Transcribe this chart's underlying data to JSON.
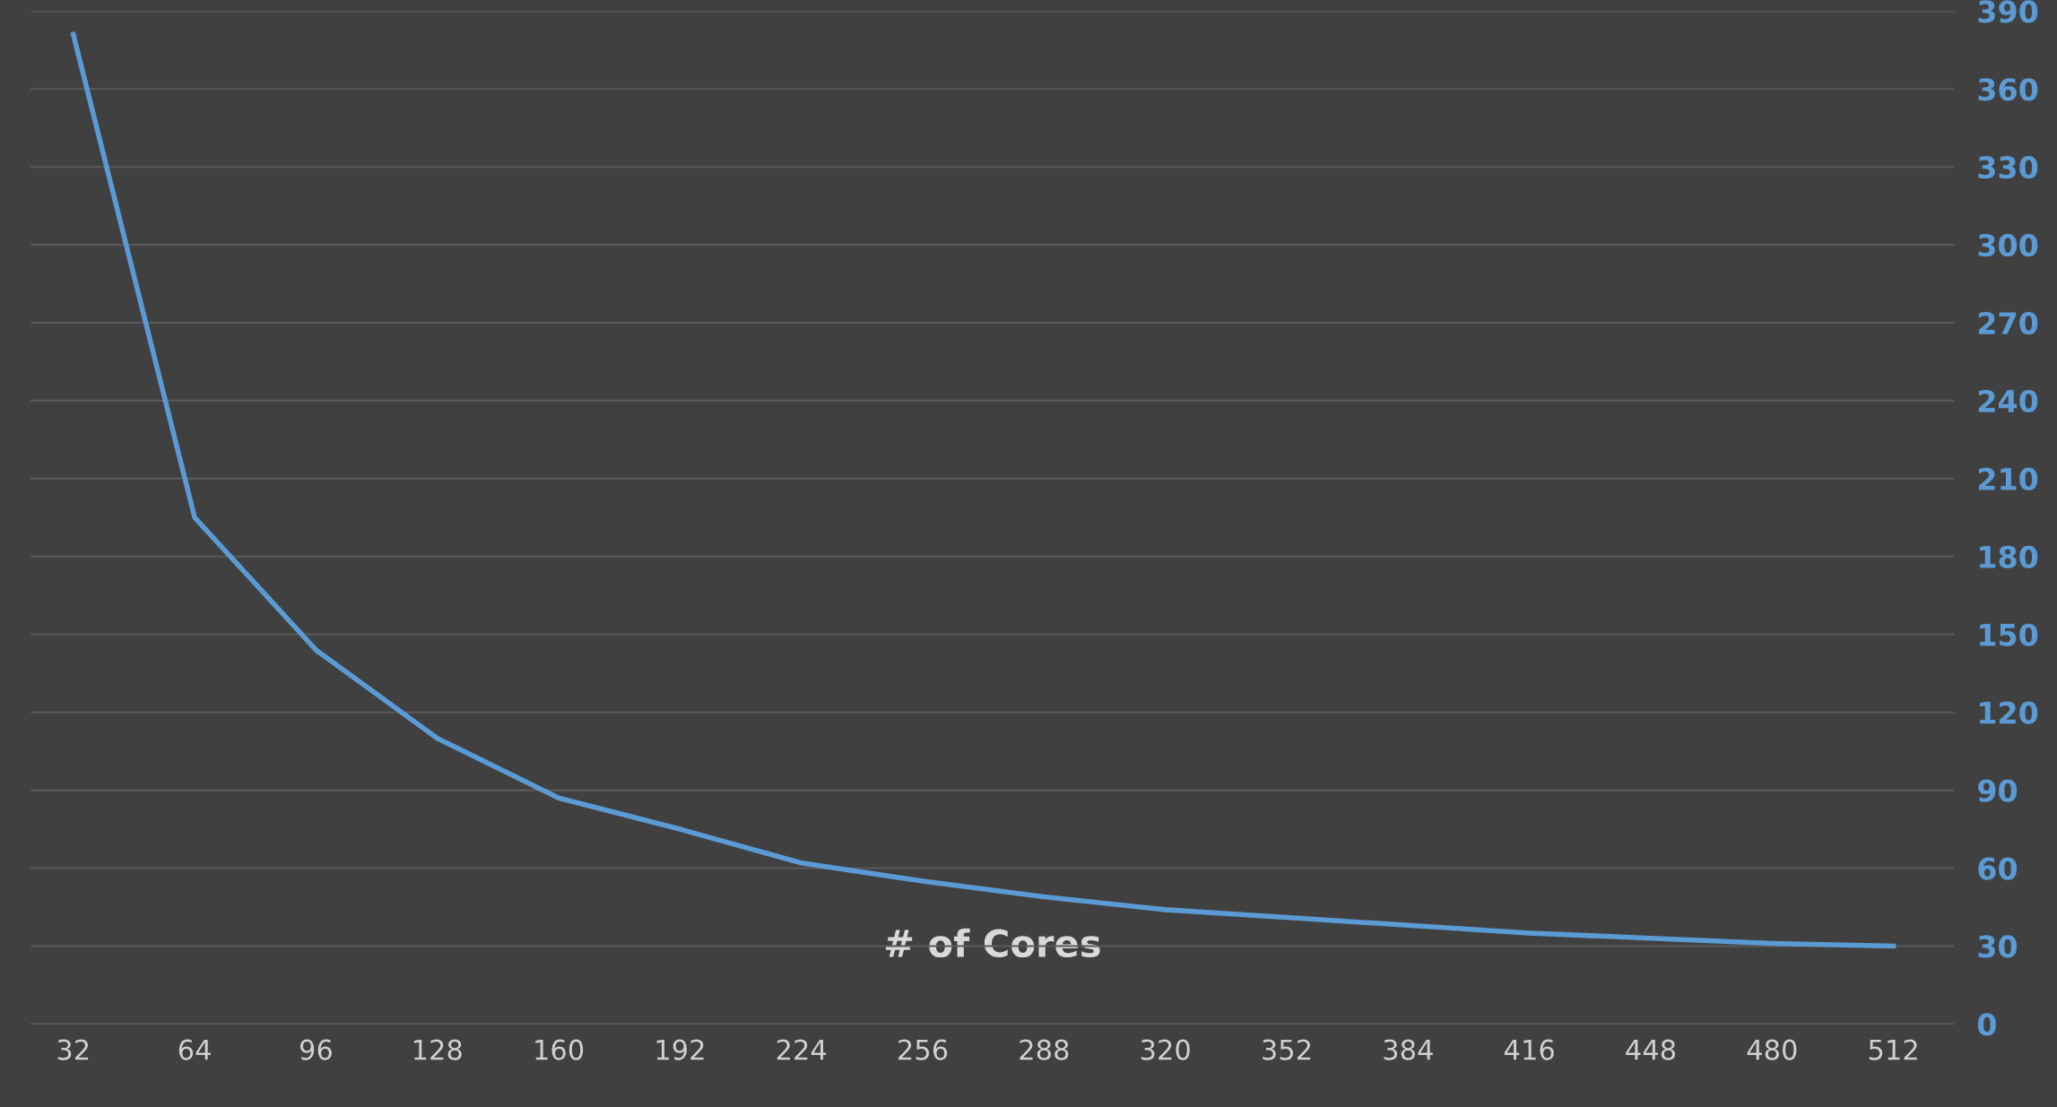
{
  "chart_data": {
    "type": "line",
    "xlabel": "# of Cores",
    "categories": [
      "32",
      "64",
      "96",
      "128",
      "160",
      "192",
      "224",
      "256",
      "288",
      "320",
      "352",
      "384",
      "416",
      "448",
      "480",
      "512"
    ],
    "series": [
      {
        "color": "#5b9bd5",
        "values": [
          381,
          195,
          144,
          110,
          87,
          75,
          62,
          55,
          49,
          44,
          41,
          38,
          35,
          33,
          31,
          30
        ]
      }
    ],
    "ylim": [
      0,
      390
    ],
    "yticks": [
      0,
      30,
      60,
      90,
      120,
      150,
      180,
      210,
      240,
      270,
      300,
      330,
      360,
      390
    ],
    "grid": "y",
    "marker": "none",
    "line_style": "solid",
    "legend": false
  }
}
